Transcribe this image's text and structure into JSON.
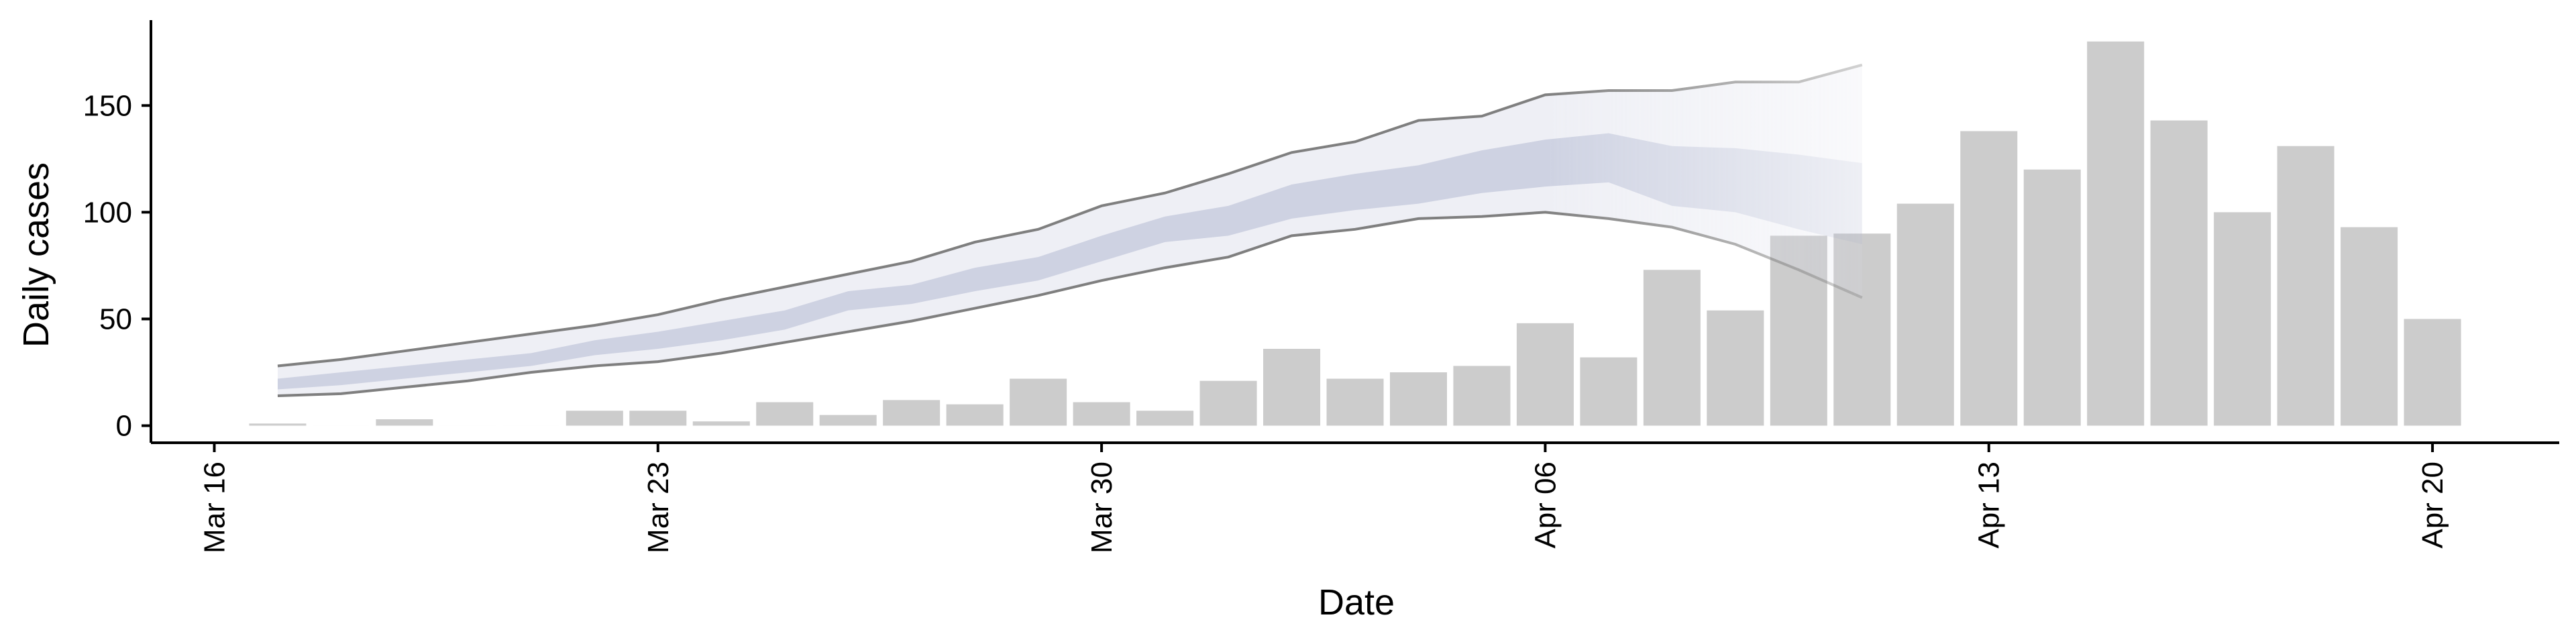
{
  "chart_data": {
    "type": "bar",
    "xlabel": "Date",
    "ylabel": "Daily cases",
    "ylim": [
      -8,
      190
    ],
    "xlim": [
      "2020-03-15",
      "2020-04-22"
    ],
    "grid": false,
    "legend": "none",
    "y_ticks": [
      0,
      50,
      100,
      150
    ],
    "x_ticks": [
      {
        "date": "2020-03-16",
        "label": "Mar 16"
      },
      {
        "date": "2020-03-23",
        "label": "Mar 23"
      },
      {
        "date": "2020-03-30",
        "label": "Mar 30"
      },
      {
        "date": "2020-04-06",
        "label": "Apr 06"
      },
      {
        "date": "2020-04-13",
        "label": "Apr 13"
      },
      {
        "date": "2020-04-20",
        "label": "Apr 20"
      }
    ],
    "bars": {
      "x": [
        "2020-03-17",
        "2020-03-18",
        "2020-03-19",
        "2020-03-20",
        "2020-03-21",
        "2020-03-22",
        "2020-03-23",
        "2020-03-24",
        "2020-03-25",
        "2020-03-26",
        "2020-03-27",
        "2020-03-28",
        "2020-03-29",
        "2020-03-30",
        "2020-03-31",
        "2020-04-01",
        "2020-04-02",
        "2020-04-03",
        "2020-04-04",
        "2020-04-05",
        "2020-04-06",
        "2020-04-07",
        "2020-04-08",
        "2020-04-09",
        "2020-04-10",
        "2020-04-11",
        "2020-04-12",
        "2020-04-13",
        "2020-04-14",
        "2020-04-15",
        "2020-04-16",
        "2020-04-17",
        "2020-04-18",
        "2020-04-19",
        "2020-04-20"
      ],
      "values": [
        1,
        0,
        3,
        0,
        0,
        7,
        7,
        2,
        11,
        5,
        12,
        10,
        22,
        11,
        7,
        21,
        36,
        22,
        25,
        28,
        48,
        32,
        73,
        54,
        89,
        90,
        104,
        138,
        120,
        180,
        143,
        100,
        131,
        93,
        50
      ]
    },
    "nowcast": {
      "x": [
        "2020-03-17",
        "2020-03-18",
        "2020-03-19",
        "2020-03-20",
        "2020-03-21",
        "2020-03-22",
        "2020-03-23",
        "2020-03-24",
        "2020-03-25",
        "2020-03-26",
        "2020-03-27",
        "2020-03-28",
        "2020-03-29",
        "2020-03-30",
        "2020-03-31",
        "2020-04-01",
        "2020-04-02",
        "2020-04-03",
        "2020-04-04",
        "2020-04-05",
        "2020-04-06",
        "2020-04-07",
        "2020-04-08",
        "2020-04-09",
        "2020-04-10",
        "2020-04-11"
      ],
      "upper": [
        28,
        31,
        35,
        39,
        43,
        47,
        52,
        59,
        65,
        71,
        77,
        86,
        92,
        103,
        109,
        118,
        128,
        133,
        143,
        145,
        155,
        157,
        157,
        161,
        161,
        169
      ],
      "inner_upper": [
        22,
        25,
        28,
        31,
        34,
        40,
        44,
        49,
        54,
        63,
        66,
        74,
        79,
        89,
        98,
        103,
        113,
        118,
        122,
        129,
        134,
        137,
        131,
        130,
        127,
        123
      ],
      "inner_lower": [
        17,
        19,
        22,
        25,
        28,
        33,
        36,
        40,
        45,
        54,
        57,
        63,
        68,
        77,
        86,
        89,
        97,
        101,
        104,
        109,
        112,
        114,
        103,
        100,
        92,
        85
      ],
      "lower": [
        14,
        15,
        18,
        21,
        25,
        28,
        30,
        34,
        39,
        44,
        49,
        55,
        61,
        68,
        74,
        79,
        89,
        92,
        97,
        98,
        100,
        97,
        93,
        85,
        73,
        60
      ]
    },
    "colors": {
      "bar": "#cccccc",
      "band_outer": "#d9dce8",
      "band_inner": "#a9b0cb",
      "band_line": "#7f7f7f",
      "axis": "#000000"
    }
  }
}
